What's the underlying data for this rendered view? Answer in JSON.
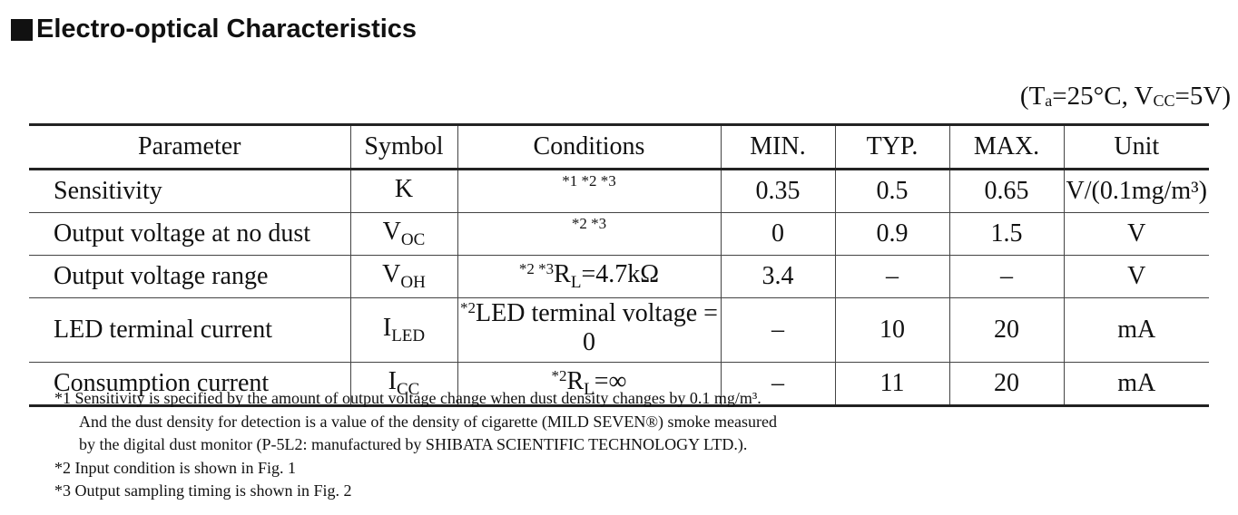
{
  "title": "Electro-optical Characteristics",
  "conditions_note": {
    "prefix": "(T",
    "ta_sub": "a",
    "middle": "=25°C, V",
    "vcc_sub": "CC",
    "suffix": "=5V)"
  },
  "table": {
    "headers": {
      "parameter": "Parameter",
      "symbol": "Symbol",
      "conditions": "Conditions",
      "min": "MIN.",
      "typ": "TYP.",
      "max": "MAX.",
      "unit": "Unit"
    },
    "rows": [
      {
        "parameter": "Sensitivity",
        "symbol": "K",
        "symbol_sub": "",
        "cond_sup": "*1 *2 *3",
        "cond_main": "",
        "cond_main_sub": "",
        "cond_after": "",
        "min": "0.35",
        "typ": "0.5",
        "max": "0.65",
        "unit": "V/(0.1mg/m³)"
      },
      {
        "parameter": "Output voltage at no dust",
        "symbol": "V",
        "symbol_sub": "OC",
        "cond_sup": "*2 *3",
        "cond_main": "",
        "cond_main_sub": "",
        "cond_after": "",
        "min": "0",
        "typ": "0.9",
        "max": "1.5",
        "unit": "V"
      },
      {
        "parameter": "Output voltage range",
        "symbol": "V",
        "symbol_sub": "OH",
        "cond_sup": "*2 *3",
        "cond_main": "R",
        "cond_main_sub": "L",
        "cond_after": "=4.7kΩ",
        "min": "3.4",
        "typ": "–",
        "max": "–",
        "unit": "V"
      },
      {
        "parameter": "LED terminal current",
        "symbol": "I",
        "symbol_sub": "LED",
        "cond_sup": "*2",
        "cond_main": "LED terminal voltage = 0",
        "cond_main_sub": "",
        "cond_after": "",
        "min": "–",
        "typ": "10",
        "max": "20",
        "unit": "mA"
      },
      {
        "parameter": "Consumption current",
        "symbol": "I",
        "symbol_sub": "CC",
        "cond_sup": "*2",
        "cond_main": "R",
        "cond_main_sub": "L",
        "cond_after": "=∞",
        "min": "–",
        "typ": "11",
        "max": "20",
        "unit": "mA"
      }
    ]
  },
  "footnotes": [
    "*1 Sensitivity is specified by the amount of output voltage change when dust density changes by 0.1 mg/m³.",
    "And the dust density for detection is a value of the density of cigarette (MILD SEVEN®) smoke measured",
    "by the digital dust monitor (P-5L2:  manufactured by SHIBATA SCIENTIFIC TECHNOLOGY LTD.).",
    "*2 Input condition is shown in Fig. 1",
    "*3 Output sampling timing is shown in Fig. 2"
  ]
}
